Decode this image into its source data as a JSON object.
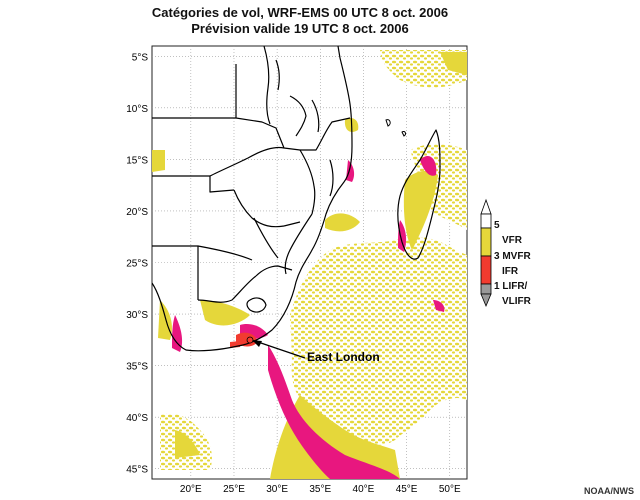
{
  "title": {
    "line1": "Catégories de vol, WRF-EMS 00 UTC 8 oct. 2006",
    "line2": "Prévision valide 19 UTC 8 oct. 2006"
  },
  "axes": {
    "lat_ticks": [
      "5°S",
      "10°S",
      "15°S",
      "20°S",
      "25°S",
      "30°S",
      "35°S",
      "40°S",
      "45°S"
    ],
    "lon_ticks": [
      "20°E",
      "25°E",
      "30°E",
      "35°E",
      "40°E",
      "45°E",
      "50°E"
    ],
    "lat_range": [
      -46,
      -4
    ],
    "lon_range": [
      15.5,
      52
    ]
  },
  "annotation": {
    "label": "East London"
  },
  "legend": {
    "top_number": "5",
    "categories": [
      {
        "name": "VFR",
        "color": "#e5d73a"
      },
      {
        "name": "MVFR",
        "color": "#e8174f"
      },
      {
        "name": "IFR",
        "color": "#f03a3a"
      },
      {
        "name": "LIFR/ VLIFR",
        "color": "#9a9a9a"
      }
    ],
    "level_labels": {
      "l3": "3 MVFR",
      "l1": "1 LIFR/",
      "vfr": "VFR",
      "ifr": "IFR",
      "vlifr": "VLIFR"
    }
  },
  "colors": {
    "vfr": "#e5d73a",
    "mvfr": "#e8177f",
    "ifr": "#f23b2f",
    "boundary": "#000000",
    "grid": "#9a9a9a"
  },
  "credit": "NOAA/NWS"
}
